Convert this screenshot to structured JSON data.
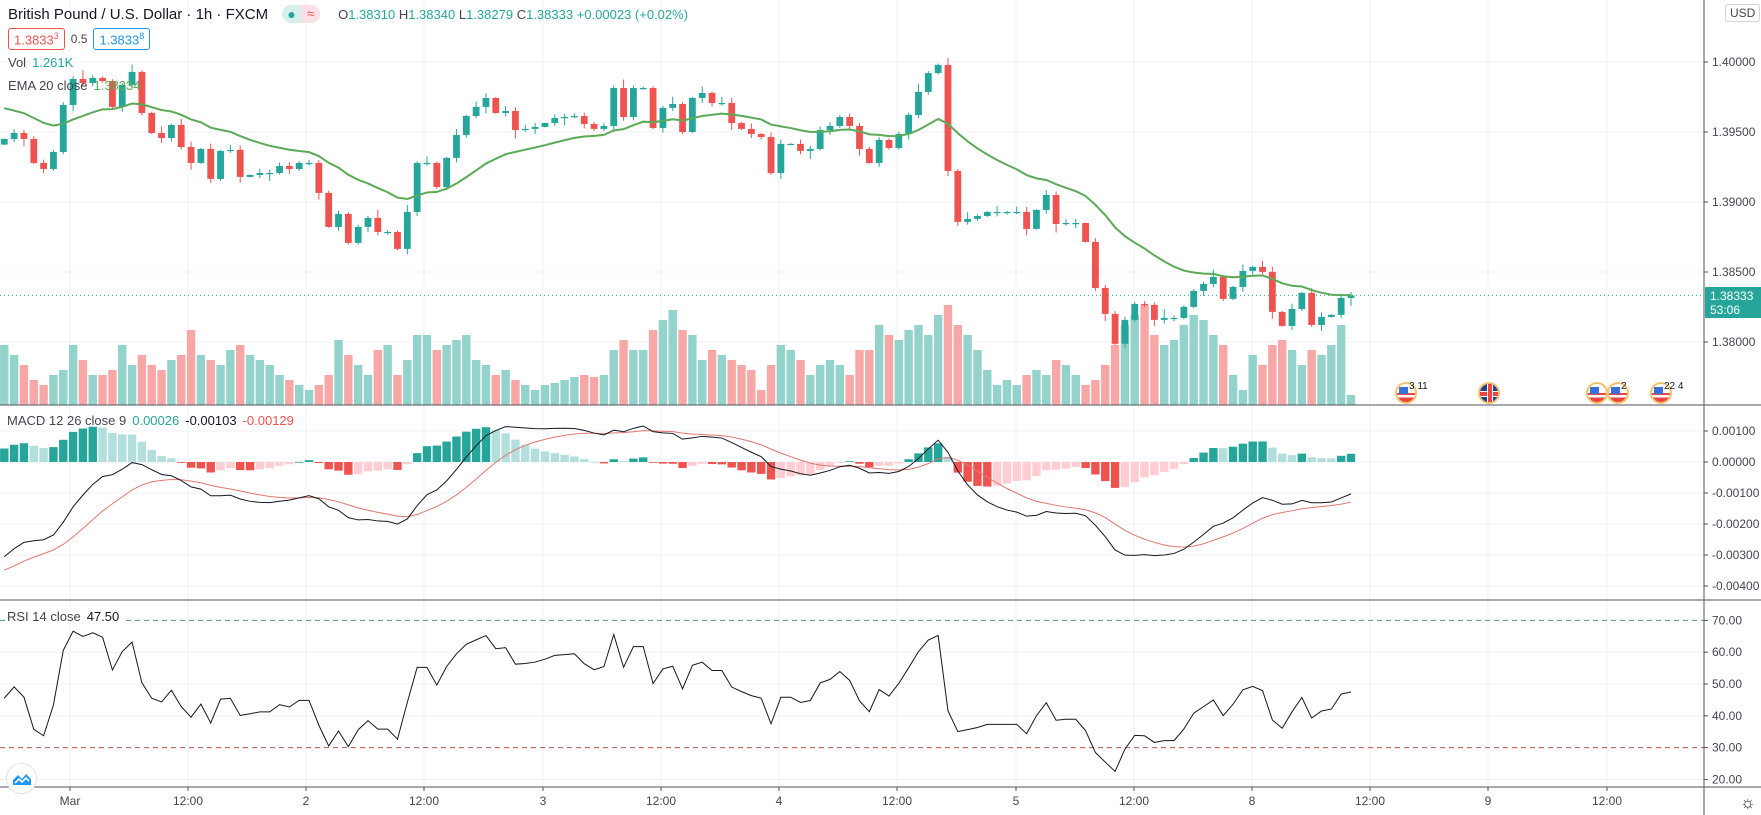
{
  "header": {
    "title": "British Pound / U.S. Dollar · 1h · FXCM",
    "status_icon": "market-open-dot",
    "o_label": "O",
    "o_value": "1.38310",
    "h_label": "H",
    "h_value": "1.38340",
    "l_label": "L",
    "l_value": "1.38279",
    "c_label": "C",
    "c_value": "1.38333",
    "change": "+0.00023 (+0.02%)",
    "sell_price": "1.3833",
    "sell_price_sup": "3",
    "spread": "0.5",
    "buy_price": "1.3833",
    "buy_price_sup": "8",
    "currency": "USD"
  },
  "legends": {
    "vol_label": "Vol",
    "vol_value": "1.261K",
    "ema_label": "EMA 20 close",
    "ema_value": "1.38334",
    "macd_label": "MACD 12 26 close 9",
    "macd_hist": "0.00026",
    "macd_line": "-0.00103",
    "macd_signal": "-0.00129",
    "rsi_label": "RSI 14 close",
    "rsi_value": "47.50"
  },
  "price_tag": {
    "price": "1.38333",
    "countdown": "53:06"
  },
  "events": [
    {
      "flag": "us",
      "label": "3 11"
    },
    {
      "flag": "uk",
      "label": ""
    },
    {
      "flag": "us",
      "label": ""
    },
    {
      "flag": "us",
      "label": "2"
    },
    {
      "flag": "us",
      "label": "22 4"
    }
  ],
  "colors": {
    "up": "#26a69a",
    "down": "#ef5350",
    "up_light": "#93d3cc",
    "down_light": "#f7a8a6",
    "ema": "#5aaa57",
    "macd": "#131722",
    "signal": "#e0776f"
  },
  "chart_data": {
    "type": "candlestick",
    "title": "British Pound / U.S. Dollar · 1h · FXCM",
    "x_tick_labels": [
      "Mar",
      "12:00",
      "2",
      "12:00",
      "3",
      "12:00",
      "4",
      "12:00",
      "5",
      "12:00",
      "8",
      "12:00",
      "9",
      "12:00"
    ],
    "price_axis": {
      "ticks": [
        "1.40000",
        "1.39500",
        "1.39000",
        "1.38500",
        "1.38000"
      ],
      "tick_values": [
        1.4,
        1.395,
        1.39,
        1.385,
        1.38
      ]
    },
    "macd_axis": {
      "ticks": [
        "0.00100",
        "0.00000",
        "-0.00100",
        "-0.00200",
        "-0.00300",
        "-0.00400"
      ],
      "tick_values": [
        0.001,
        0,
        -0.001,
        -0.002,
        -0.003,
        -0.004
      ]
    },
    "rsi_axis": {
      "ticks": [
        "70.00",
        "60.00",
        "50.00",
        "40.00",
        "30.00",
        "20.00"
      ],
      "tick_values": [
        70,
        60,
        50,
        40,
        30,
        20
      ],
      "upper_band": 70,
      "lower_band": 30
    },
    "first_open": 1.3941,
    "close": [
      1.3945,
      1.39493,
      1.3945,
      1.39279,
      1.39236,
      1.39357,
      1.39693,
      1.39879,
      1.3985,
      1.39886,
      1.39864,
      1.39679,
      1.39836,
      1.39929,
      1.39636,
      1.39493,
      1.39457,
      1.3955,
      1.39393,
      1.39279,
      1.39379,
      1.39165,
      1.39365,
      1.39372,
      1.39179,
      1.39193,
      1.39207,
      1.39207,
      1.39257,
      1.39236,
      1.39279,
      1.39279,
      1.39065,
      1.38822,
      1.38915,
      1.38708,
      1.38822,
      1.38886,
      1.38786,
      1.38786,
      1.38665,
      1.38929,
      1.39279,
      1.39279,
      1.39107,
      1.39315,
      1.39479,
      1.39614,
      1.39679,
      1.39743,
      1.39636,
      1.3965,
      1.39514,
      1.39522,
      1.39536,
      1.39564,
      1.396,
      1.39607,
      1.39614,
      1.39557,
      1.39522,
      1.39543,
      1.39814,
      1.39607,
      1.39814,
      1.39814,
      1.39529,
      1.39672,
      1.397,
      1.395,
      1.39743,
      1.39779,
      1.39707,
      1.39707,
      1.39564,
      1.39522,
      1.39486,
      1.39464,
      1.39207,
      1.39415,
      1.39415,
      1.39365,
      1.39379,
      1.39514,
      1.39543,
      1.39607,
      1.39543,
      1.39379,
      1.39279,
      1.39443,
      1.39386,
      1.39486,
      1.39622,
      1.39786,
      1.39921,
      1.39979,
      1.39222,
      1.38858,
      1.38879,
      1.389,
      1.38929,
      1.38929,
      1.38929,
      1.38929,
      1.38808,
      1.38943,
      1.3905,
      1.38843,
      1.3885,
      1.3885,
      1.38715,
      1.38386,
      1.38201,
      1.37987,
      1.38158,
      1.38272,
      1.38265,
      1.38158,
      1.38172,
      1.38172,
      1.38251,
      1.38365,
      1.38415,
      1.38465,
      1.38308,
      1.38393,
      1.38508,
      1.38536,
      1.38501,
      1.38215,
      1.38115,
      1.38236,
      1.38351,
      1.38122,
      1.38179,
      1.38194,
      1.38315,
      1.38333
    ],
    "volume": [
      60,
      50,
      40,
      25,
      20,
      30,
      35,
      60,
      45,
      30,
      30,
      35,
      60,
      40,
      50,
      40,
      35,
      45,
      50,
      75,
      50,
      45,
      40,
      55,
      60,
      50,
      45,
      40,
      30,
      25,
      20,
      15,
      20,
      30,
      65,
      50,
      40,
      30,
      55,
      60,
      30,
      45,
      70,
      70,
      55,
      60,
      65,
      70,
      45,
      40,
      30,
      35,
      25,
      20,
      15,
      20,
      22,
      25,
      28,
      30,
      28,
      30,
      55,
      65,
      55,
      55,
      75,
      85,
      95,
      75,
      70,
      45,
      55,
      50,
      45,
      40,
      35,
      15,
      40,
      60,
      55,
      45,
      30,
      40,
      45,
      40,
      30,
      55,
      55,
      80,
      70,
      65,
      75,
      80,
      70,
      90,
      100,
      80,
      70,
      55,
      35,
      20,
      25,
      20,
      30,
      35,
      30,
      45,
      40,
      30,
      20,
      25,
      40,
      60,
      80,
      90,
      100,
      70,
      60,
      65,
      80,
      90,
      85,
      70,
      60,
      30,
      15,
      50,
      40,
      60,
      65,
      55,
      40,
      55,
      50,
      60,
      80,
      10
    ],
    "ema_period": 20,
    "ema_seed": 1.39693,
    "macd_params": [
      12,
      26,
      9
    ],
    "macd_seed": {
      "macd": -0.0033,
      "signal": -0.0036
    },
    "rsi_period": 14,
    "rsi_seed": 42,
    "last_price": 1.38333
  }
}
